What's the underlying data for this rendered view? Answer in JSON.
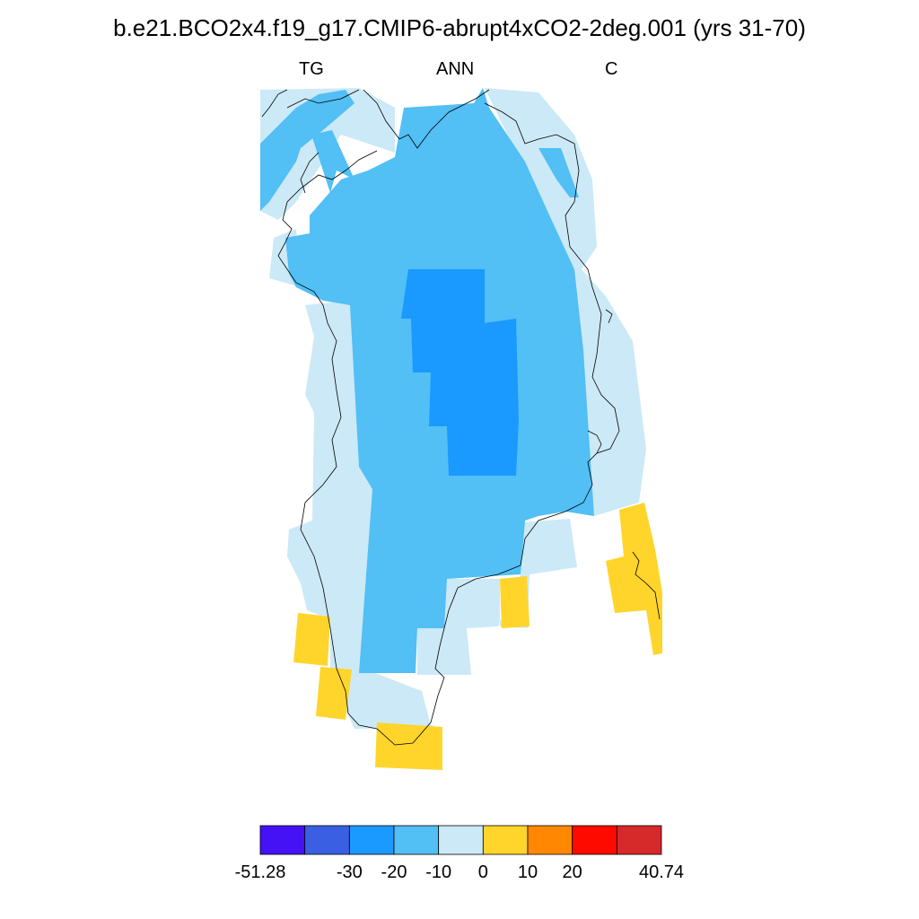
{
  "title": "b.e21.BCO2x4.f19_g17.CMIP6-abrupt4xCO2-2deg.001 (yrs 31-70)",
  "subtitles": {
    "left": "TG",
    "center": "ANN",
    "right": "C"
  },
  "colorbar": {
    "colors": [
      "#4412f5",
      "#3b5fe3",
      "#1a99ff",
      "#52bff5",
      "#cce9f7",
      "#ffd52b",
      "#ff8800",
      "#ff0a00",
      "#d62929"
    ],
    "labels": [
      "-51.28",
      "-30",
      "-20",
      "-10",
      "0",
      "10",
      "20",
      "40.74"
    ]
  },
  "map_fill": {
    "strong_cooling": "#1a99ff",
    "cooling": "#52bff5",
    "slight_cooling": "#cce9f7",
    "warming": "#ffd52b",
    "coastline": "#000000"
  }
}
